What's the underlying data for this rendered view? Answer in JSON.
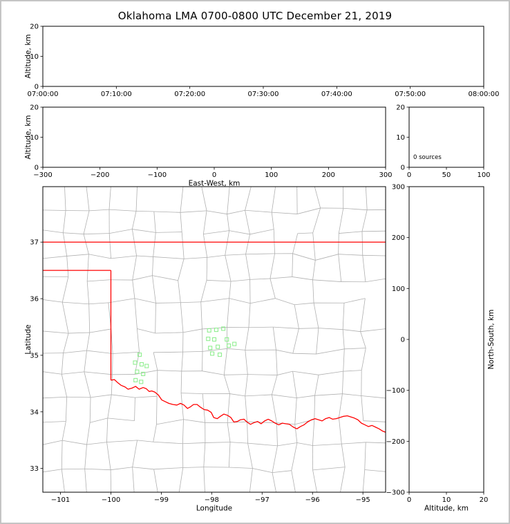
{
  "title": "Oklahoma LMA 0700-0800 UTC December 21, 2019",
  "colors": {
    "axis": "#000000",
    "text": "#000000",
    "county_line": "#b0b0b0",
    "state_border": "#ff0000",
    "marker": "#90ee90",
    "figure_border": "#c4c4c4",
    "background": "#ffffff"
  },
  "chart_data": [
    {
      "id": "time_height",
      "type": "scatter",
      "xlabel": "",
      "ylabel": "Altitude, km",
      "xlim": [
        0,
        3600
      ],
      "ylim": [
        0,
        20
      ],
      "xticks": {
        "values": [
          0,
          600,
          1200,
          1800,
          2400,
          3000,
          3600
        ],
        "labels": [
          "07:00:00",
          "07:10:00",
          "07:20:00",
          "07:30:00",
          "07:40:00",
          "07:50:00",
          "08:00:00"
        ]
      },
      "yticks": {
        "values": [
          0,
          10,
          20
        ],
        "labels": [
          "0",
          "10",
          "20"
        ]
      },
      "points": []
    },
    {
      "id": "ew_height",
      "type": "scatter",
      "xlabel": "East-West, km",
      "ylabel": "Altitude, km",
      "xlim": [
        -300,
        300
      ],
      "ylim": [
        0,
        20
      ],
      "xticks": {
        "values": [
          -300,
          -200,
          -100,
          0,
          100,
          200,
          300
        ],
        "labels": [
          "−300",
          "−200",
          "−100",
          "0",
          "100",
          "200",
          "300"
        ]
      },
      "yticks": {
        "values": [
          0,
          10,
          20
        ],
        "labels": [
          "0",
          "10",
          "20"
        ]
      },
      "points": []
    },
    {
      "id": "histogram",
      "type": "line",
      "xlabel": "",
      "ylabel": "",
      "annotation": "0 sources",
      "xlim": [
        0,
        100
      ],
      "ylim": [
        0,
        20
      ],
      "xticks": {
        "values": [
          0,
          50,
          100
        ],
        "labels": [
          "0",
          "50",
          "100"
        ]
      },
      "yticks": {
        "values": [
          0,
          10,
          20
        ],
        "labels": [
          "0",
          "10",
          "20"
        ]
      },
      "points": []
    },
    {
      "id": "map",
      "type": "scatter",
      "xlabel": "Longitude",
      "ylabel": "Latitude",
      "xlim": [
        -101.35,
        -94.55
      ],
      "ylim": [
        32.58,
        37.98
      ],
      "xticks": {
        "values": [
          -101,
          -100,
          -99,
          -98,
          -97,
          -96,
          -95
        ],
        "labels": [
          "−101",
          "−100",
          "−99",
          "−98",
          "−97",
          "−96",
          "−95"
        ]
      },
      "yticks": {
        "values": [
          33,
          34,
          35,
          36,
          37
        ],
        "labels": [
          "33",
          "34",
          "35",
          "36",
          "37"
        ]
      },
      "sources": [
        [
          -98.05,
          35.44
        ],
        [
          -97.91,
          35.45
        ],
        [
          -97.77,
          35.47
        ],
        [
          -98.07,
          35.29
        ],
        [
          -97.95,
          35.28
        ],
        [
          -97.7,
          35.28
        ],
        [
          -98.03,
          35.13
        ],
        [
          -97.88,
          35.15
        ],
        [
          -97.99,
          35.03
        ],
        [
          -97.84,
          35.01
        ],
        [
          -97.66,
          35.17
        ],
        [
          -97.55,
          35.2
        ],
        [
          -99.43,
          35.01
        ],
        [
          -99.52,
          34.87
        ],
        [
          -99.39,
          34.84
        ],
        [
          -99.29,
          34.81
        ],
        [
          -99.48,
          34.71
        ],
        [
          -99.36,
          34.67
        ],
        [
          -99.51,
          34.56
        ],
        [
          -99.4,
          34.53
        ]
      ],
      "state_border": [
        [
          [
            -101.35,
            37.0
          ],
          [
            -94.55,
            37.0
          ]
        ],
        [
          [
            -101.35,
            36.5
          ],
          [
            -100.0,
            36.5
          ]
        ],
        [
          [
            -100.0,
            36.5
          ],
          [
            -100.0,
            34.56
          ]
        ],
        [
          [
            -100.0,
            34.56
          ],
          [
            -99.93,
            34.57
          ],
          [
            -99.87,
            34.52
          ],
          [
            -99.8,
            34.47
          ],
          [
            -99.72,
            34.44
          ],
          [
            -99.66,
            34.4
          ],
          [
            -99.58,
            34.42
          ],
          [
            -99.51,
            34.45
          ],
          [
            -99.44,
            34.4
          ],
          [
            -99.36,
            34.43
          ],
          [
            -99.3,
            34.41
          ],
          [
            -99.24,
            34.36
          ],
          [
            -99.19,
            34.37
          ],
          [
            -99.13,
            34.35
          ],
          [
            -99.06,
            34.3
          ],
          [
            -98.99,
            34.21
          ],
          [
            -98.92,
            34.18
          ],
          [
            -98.85,
            34.15
          ],
          [
            -98.77,
            34.13
          ],
          [
            -98.69,
            34.12
          ],
          [
            -98.62,
            34.15
          ],
          [
            -98.55,
            34.12
          ],
          [
            -98.48,
            34.06
          ],
          [
            -98.42,
            34.09
          ],
          [
            -98.36,
            34.13
          ],
          [
            -98.29,
            34.13
          ],
          [
            -98.22,
            34.08
          ],
          [
            -98.15,
            34.04
          ],
          [
            -98.08,
            34.03
          ],
          [
            -98.01,
            33.99
          ],
          [
            -97.96,
            33.9
          ],
          [
            -97.89,
            33.88
          ],
          [
            -97.83,
            33.92
          ],
          [
            -97.76,
            33.96
          ],
          [
            -97.69,
            33.94
          ],
          [
            -97.62,
            33.9
          ],
          [
            -97.56,
            33.82
          ],
          [
            -97.49,
            33.83
          ],
          [
            -97.43,
            33.86
          ],
          [
            -97.36,
            33.87
          ],
          [
            -97.3,
            33.82
          ],
          [
            -97.23,
            33.78
          ],
          [
            -97.16,
            33.81
          ],
          [
            -97.09,
            33.83
          ],
          [
            -97.02,
            33.79
          ],
          [
            -96.95,
            33.84
          ],
          [
            -96.88,
            33.87
          ],
          [
            -96.81,
            33.84
          ],
          [
            -96.74,
            33.8
          ],
          [
            -96.67,
            33.77
          ],
          [
            -96.6,
            33.8
          ],
          [
            -96.53,
            33.79
          ],
          [
            -96.46,
            33.78
          ],
          [
            -96.38,
            33.73
          ],
          [
            -96.31,
            33.7
          ],
          [
            -96.24,
            33.74
          ],
          [
            -96.17,
            33.77
          ],
          [
            -96.1,
            33.82
          ],
          [
            -96.02,
            33.86
          ],
          [
            -95.95,
            33.88
          ],
          [
            -95.88,
            33.86
          ],
          [
            -95.81,
            33.84
          ],
          [
            -95.74,
            33.88
          ],
          [
            -95.67,
            33.9
          ],
          [
            -95.6,
            33.87
          ],
          [
            -95.53,
            33.88
          ],
          [
            -95.46,
            33.9
          ],
          [
            -95.39,
            33.92
          ],
          [
            -95.31,
            33.93
          ],
          [
            -95.24,
            33.91
          ],
          [
            -95.17,
            33.89
          ],
          [
            -95.1,
            33.86
          ],
          [
            -95.03,
            33.8
          ],
          [
            -94.96,
            33.77
          ],
          [
            -94.89,
            33.74
          ],
          [
            -94.82,
            33.76
          ],
          [
            -94.75,
            33.73
          ],
          [
            -94.68,
            33.7
          ],
          [
            -94.61,
            33.66
          ],
          [
            -94.55,
            33.64
          ]
        ]
      ]
    },
    {
      "id": "ns_height",
      "type": "scatter",
      "xlabel": "Altitude, km",
      "ylabel_right": "North-South, km",
      "xlim": [
        0,
        20
      ],
      "ylim": [
        -300,
        300
      ],
      "xticks": {
        "values": [
          0,
          10,
          20
        ],
        "labels": [
          "0",
          "10",
          "20"
        ]
      },
      "yticks": {
        "values": [
          300,
          200,
          100,
          0,
          -100,
          -200,
          -300
        ],
        "labels": [
          "300",
          "200",
          "100",
          "0",
          "−100",
          "−200",
          "−300"
        ]
      },
      "points": []
    }
  ]
}
